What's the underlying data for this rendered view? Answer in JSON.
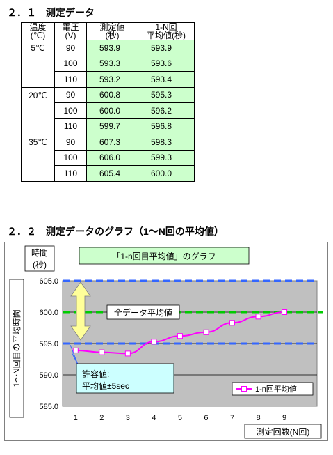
{
  "section1": {
    "title": "２．１　測定データ"
  },
  "section2": {
    "title": "２．２　測定データのグラフ（1～N回の平均値）"
  },
  "table": {
    "headers": [
      [
        "温度",
        "(℃)"
      ],
      [
        "電圧",
        "(V)"
      ],
      [
        "測定値",
        "(秒)"
      ],
      [
        "1-N回",
        "平均値(秒)"
      ]
    ],
    "groups": [
      {
        "temp": "5℃",
        "rows": [
          {
            "voltage": "90",
            "measured": "593.9",
            "average": "593.9"
          },
          {
            "voltage": "100",
            "measured": "593.3",
            "average": "593.6"
          },
          {
            "voltage": "110",
            "measured": "593.2",
            "average": "593.4"
          }
        ]
      },
      {
        "temp": "20℃",
        "rows": [
          {
            "voltage": "90",
            "measured": "600.8",
            "average": "595.3"
          },
          {
            "voltage": "100",
            "measured": "600.0",
            "average": "596.2"
          },
          {
            "voltage": "110",
            "measured": "599.7",
            "average": "596.8"
          }
        ]
      },
      {
        "temp": "35℃",
        "rows": [
          {
            "voltage": "90",
            "measured": "607.3",
            "average": "598.3"
          },
          {
            "voltage": "100",
            "measured": "606.0",
            "average": "599.3"
          },
          {
            "voltage": "110",
            "measured": "605.4",
            "average": "600.0"
          }
        ]
      }
    ]
  },
  "colors": {
    "table_highlight": "#ccffcc",
    "chart_outer_bg": "#ffffff",
    "plot_bg": "#c0c0c0",
    "title_box_bg": "#ccffcc",
    "series": "#ff00ff",
    "target_line": "#00cc00",
    "limit_line": "#3366ff",
    "arrow_fill": "#ffff99",
    "annotation_bg": "#ccffff"
  },
  "chart_data": {
    "type": "line",
    "title": "「1-n回目平均値」のグラフ",
    "ylabel_top": "時間",
    "ylabel_bottom": "(秒)",
    "ylabel_side": "1～N回目の平均時間",
    "xlabel": "測定回数(N回)",
    "categories": [
      "1",
      "2",
      "3",
      "4",
      "5",
      "6",
      "7",
      "8",
      "9"
    ],
    "series": [
      {
        "name": "1-n回平均値",
        "values": [
          593.9,
          593.6,
          593.4,
          595.3,
          596.2,
          596.8,
          598.3,
          599.3,
          600.0
        ]
      }
    ],
    "ylim": [
      585.0,
      605.0
    ],
    "yticks": [
      "605.0",
      "600.0",
      "595.0",
      "590.0",
      "585.0"
    ],
    "reference_lines": {
      "upper": 605.0,
      "target": 600.0,
      "lower": 595.0
    },
    "annotations": {
      "target_label": "全データ平均値",
      "tolerance_line1": "許容値:",
      "tolerance_line2": "平均値±5sec"
    },
    "legend_position": "bottom-right",
    "grid": true
  }
}
